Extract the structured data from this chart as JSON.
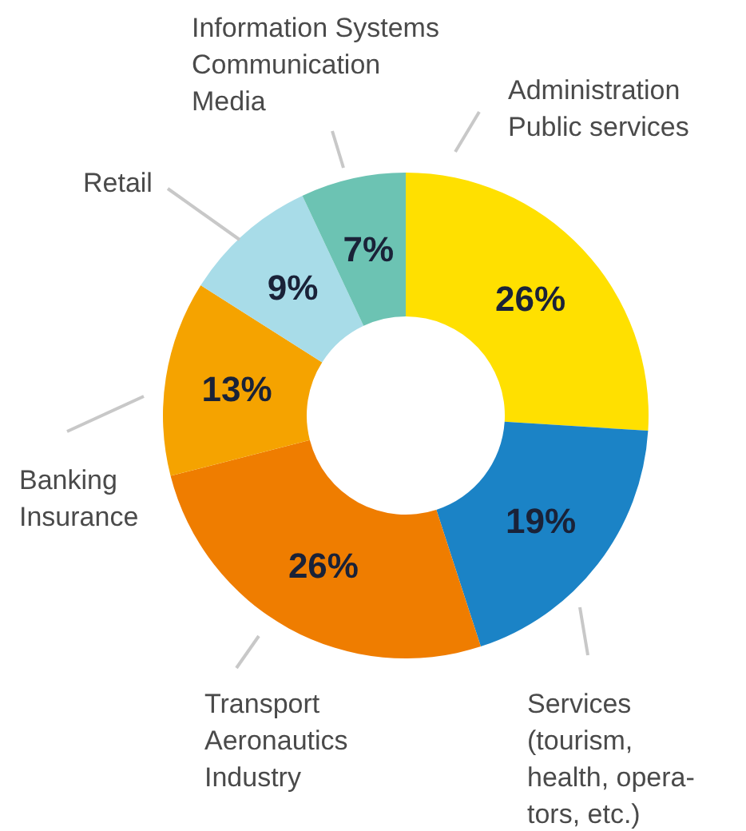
{
  "chart_data": {
    "type": "donut",
    "categories": [
      "Administration\nPublic services",
      "Services\n(tourism,\nhealth, opera-\ntors, etc.)",
      "Transport\nAeronautics\nIndustry",
      "Banking\nInsurance",
      "Retail",
      "Information Systems\nCommunication\nMedia"
    ],
    "values": [
      26,
      19,
      26,
      13,
      9,
      7
    ],
    "colors": [
      "#ffe000",
      "#1b83c6",
      "#ef7d00",
      "#f5a300",
      "#a8dce8",
      "#6cc3b3"
    ],
    "value_labels": [
      "26%",
      "19%",
      "26%",
      "13%",
      "9%",
      "7%"
    ]
  }
}
